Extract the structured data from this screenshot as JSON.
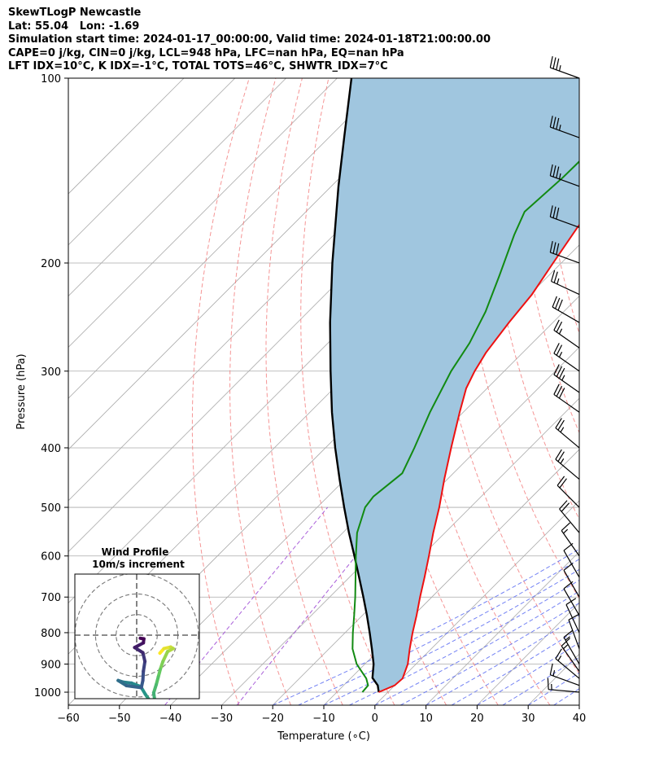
{
  "header": {
    "lines": [
      "SkewTLogP Newcastle",
      "Lat: 55.04   Lon: -1.69",
      "Simulation start time: 2024-01-17_00:00:00, Valid time: 2024-01-18T21:00:00.00",
      "CAPE=0 j/kg, CIN=0 j/kg, LCL=948 hPa, LFC=nan hPa, EQ=nan hPa",
      "LFT IDX=10°C, K IDX=-1°C, TOTAL TOTS=46°C, SHWTR_IDX=7°C"
    ]
  },
  "chart_data": {
    "type": "line",
    "subtype": "skew-T log-P",
    "xlabel": "Temperature (∘C)",
    "ylabel": "Pressure (hPa)",
    "xlim": [
      -60,
      40
    ],
    "ylim": [
      1050,
      100
    ],
    "yscale": "log",
    "xticks": [
      "−60",
      "−50",
      "−40",
      "−30",
      "−20",
      "−10",
      "0",
      "10",
      "20",
      "30",
      "40"
    ],
    "xtick_values": [
      -60,
      -50,
      -40,
      -30,
      -20,
      -10,
      0,
      10,
      20,
      30,
      40
    ],
    "yticks": [
      100,
      200,
      300,
      400,
      500,
      600,
      700,
      800,
      900,
      1000
    ],
    "grid": true,
    "colors": {
      "temperature": "#ee1111",
      "dewpoint": "#128a12",
      "parcel": "#000000",
      "shade": "#a0c6df",
      "dry_adiabat": "#f37a7a",
      "moist_adiabat": "#5b6cf2",
      "mixing_ratio": "#a14fd6",
      "isotherm": "#aaaaaa"
    },
    "series": [
      {
        "kind": "temperature",
        "points": [
          {
            "p": 1000,
            "t": -1.8
          },
          {
            "p": 975,
            "t": 0.0
          },
          {
            "p": 950,
            "t": 0.2
          },
          {
            "p": 900,
            "t": -1.6
          },
          {
            "p": 850,
            "t": -4.2
          },
          {
            "p": 800,
            "t": -6.8
          },
          {
            "p": 750,
            "t": -9.4
          },
          {
            "p": 700,
            "t": -12.3
          },
          {
            "p": 650,
            "t": -15.3
          },
          {
            "p": 600,
            "t": -18.6
          },
          {
            "p": 550,
            "t": -22.3
          },
          {
            "p": 500,
            "t": -26.1
          },
          {
            "p": 450,
            "t": -30.6
          },
          {
            "p": 400,
            "t": -35.4
          },
          {
            "p": 350,
            "t": -40.7
          },
          {
            "p": 320,
            "t": -44.1
          },
          {
            "p": 300,
            "t": -45.8
          },
          {
            "p": 280,
            "t": -47.2
          },
          {
            "p": 250,
            "t": -48.6
          },
          {
            "p": 225,
            "t": -49.6
          },
          {
            "p": 200,
            "t": -51.6
          },
          {
            "p": 175,
            "t": -53.8
          },
          {
            "p": 150,
            "t": -55.6
          },
          {
            "p": 125,
            "t": -58.8
          },
          {
            "p": 100,
            "t": -63.4
          }
        ]
      },
      {
        "kind": "dewpoint",
        "points": [
          {
            "p": 1000,
            "t": -5.0
          },
          {
            "p": 975,
            "t": -5.2
          },
          {
            "p": 950,
            "t": -6.9
          },
          {
            "p": 900,
            "t": -11.6
          },
          {
            "p": 850,
            "t": -15.4
          },
          {
            "p": 800,
            "t": -18.5
          },
          {
            "p": 750,
            "t": -21.6
          },
          {
            "p": 700,
            "t": -25.0
          },
          {
            "p": 650,
            "t": -28.8
          },
          {
            "p": 600,
            "t": -32.9
          },
          {
            "p": 550,
            "t": -37.2
          },
          {
            "p": 500,
            "t": -40.6
          },
          {
            "p": 480,
            "t": -41.1
          },
          {
            "p": 440,
            "t": -40.0
          },
          {
            "p": 400,
            "t": -42.6
          },
          {
            "p": 350,
            "t": -46.5
          },
          {
            "p": 300,
            "t": -50.4
          },
          {
            "p": 270,
            "t": -52.3
          },
          {
            "p": 240,
            "t": -55.3
          },
          {
            "p": 210,
            "t": -59.6
          },
          {
            "p": 180,
            "t": -64.7
          },
          {
            "p": 165,
            "t": -67.2
          },
          {
            "p": 145,
            "t": -66.4
          },
          {
            "p": 125,
            "t": -66.2
          },
          {
            "p": 100,
            "t": -68.2
          }
        ]
      },
      {
        "kind": "parcel",
        "points": [
          {
            "p": 1000,
            "t": -1.8
          },
          {
            "p": 975,
            "t": -3.3
          },
          {
            "p": 948,
            "t": -5.8
          },
          {
            "p": 900,
            "t": -8.3
          },
          {
            "p": 850,
            "t": -11.6
          },
          {
            "p": 800,
            "t": -15.2
          },
          {
            "p": 750,
            "t": -19.1
          },
          {
            "p": 700,
            "t": -23.4
          },
          {
            "p": 650,
            "t": -28.1
          },
          {
            "p": 600,
            "t": -33.2
          },
          {
            "p": 550,
            "t": -38.8
          },
          {
            "p": 500,
            "t": -44.7
          },
          {
            "p": 450,
            "t": -51.1
          },
          {
            "p": 400,
            "t": -58.1
          },
          {
            "p": 350,
            "t": -65.7
          },
          {
            "p": 300,
            "t": -74.0
          },
          {
            "p": 250,
            "t": -83.6
          },
          {
            "p": 200,
            "t": -94.8
          },
          {
            "p": 150,
            "t": -108.6
          },
          {
            "p": 125,
            "t": -117.0
          },
          {
            "p": 100,
            "t": -127.2
          }
        ]
      }
    ],
    "wind_barbs": [
      {
        "p": 100,
        "speed_kt": 35,
        "dir_deg": 290
      },
      {
        "p": 125,
        "speed_kt": 35,
        "dir_deg": 290
      },
      {
        "p": 150,
        "speed_kt": 35,
        "dir_deg": 290
      },
      {
        "p": 175,
        "speed_kt": 30,
        "dir_deg": 290
      },
      {
        "p": 200,
        "speed_kt": 30,
        "dir_deg": 290
      },
      {
        "p": 225,
        "speed_kt": 25,
        "dir_deg": 295
      },
      {
        "p": 250,
        "speed_kt": 30,
        "dir_deg": 300
      },
      {
        "p": 275,
        "speed_kt": 25,
        "dir_deg": 305
      },
      {
        "p": 300,
        "speed_kt": 25,
        "dir_deg": 305
      },
      {
        "p": 325,
        "speed_kt": 35,
        "dir_deg": 305
      },
      {
        "p": 350,
        "speed_kt": 30,
        "dir_deg": 305
      },
      {
        "p": 400,
        "speed_kt": 25,
        "dir_deg": 310
      },
      {
        "p": 450,
        "speed_kt": 25,
        "dir_deg": 310
      },
      {
        "p": 500,
        "speed_kt": 20,
        "dir_deg": 315
      },
      {
        "p": 550,
        "speed_kt": 20,
        "dir_deg": 320
      },
      {
        "p": 600,
        "speed_kt": 15,
        "dir_deg": 325
      },
      {
        "p": 650,
        "speed_kt": 10,
        "dir_deg": 330
      },
      {
        "p": 700,
        "speed_kt": 10,
        "dir_deg": 330
      },
      {
        "p": 750,
        "speed_kt": 10,
        "dir_deg": 330
      },
      {
        "p": 800,
        "speed_kt": 10,
        "dir_deg": 335
      },
      {
        "p": 850,
        "speed_kt": 10,
        "dir_deg": 340
      },
      {
        "p": 900,
        "speed_kt": 15,
        "dir_deg": 330
      },
      {
        "p": 925,
        "speed_kt": 15,
        "dir_deg": 325
      },
      {
        "p": 950,
        "speed_kt": 15,
        "dir_deg": 310
      },
      {
        "p": 975,
        "speed_kt": 15,
        "dir_deg": 290
      },
      {
        "p": 1000,
        "speed_kt": 15,
        "dir_deg": 275
      }
    ],
    "hodograph": {
      "title_lines": [
        "Wind Profile",
        "10m/s increment"
      ],
      "rings": 3,
      "colormap": [
        "#440154",
        "#3b528b",
        "#21918c",
        "#5ec962",
        "#fde725"
      ],
      "points": [
        {
          "u": 4.5,
          "v": -3.5
        },
        {
          "u": 5.3,
          "v": -2.6
        },
        {
          "u": 6.6,
          "v": -2.3
        },
        {
          "u": 7.1,
          "v": -2.6
        },
        {
          "u": 6.0,
          "v": -3.2
        },
        {
          "u": 5.1,
          "v": -5.1
        },
        {
          "u": 4.6,
          "v": -6.6
        },
        {
          "u": 4.2,
          "v": -8.1
        },
        {
          "u": 3.8,
          "v": -9.6
        },
        {
          "u": 3.3,
          "v": -11.2
        },
        {
          "u": 3.5,
          "v": -12.6
        },
        {
          "u": 2.6,
          "v": -12.8
        },
        {
          "u": 1.7,
          "v": -11.5
        },
        {
          "u": 0.8,
          "v": -10.0
        },
        {
          "u": -1.0,
          "v": -9.3
        },
        {
          "u": -2.7,
          "v": -9.1
        },
        {
          "u": -3.6,
          "v": -8.8
        },
        {
          "u": -2.0,
          "v": -9.8
        },
        {
          "u": 0.9,
          "v": -10.2
        },
        {
          "u": 1.2,
          "v": -8.8
        },
        {
          "u": 1.3,
          "v": -7.0
        },
        {
          "u": 1.6,
          "v": -5.1
        },
        {
          "u": 1.2,
          "v": -3.4
        },
        {
          "u": -0.4,
          "v": -2.4
        },
        {
          "u": 1.3,
          "v": -1.5
        },
        {
          "u": 1.4,
          "v": -0.7
        },
        {
          "u": 0.7,
          "v": -0.6
        }
      ]
    }
  }
}
